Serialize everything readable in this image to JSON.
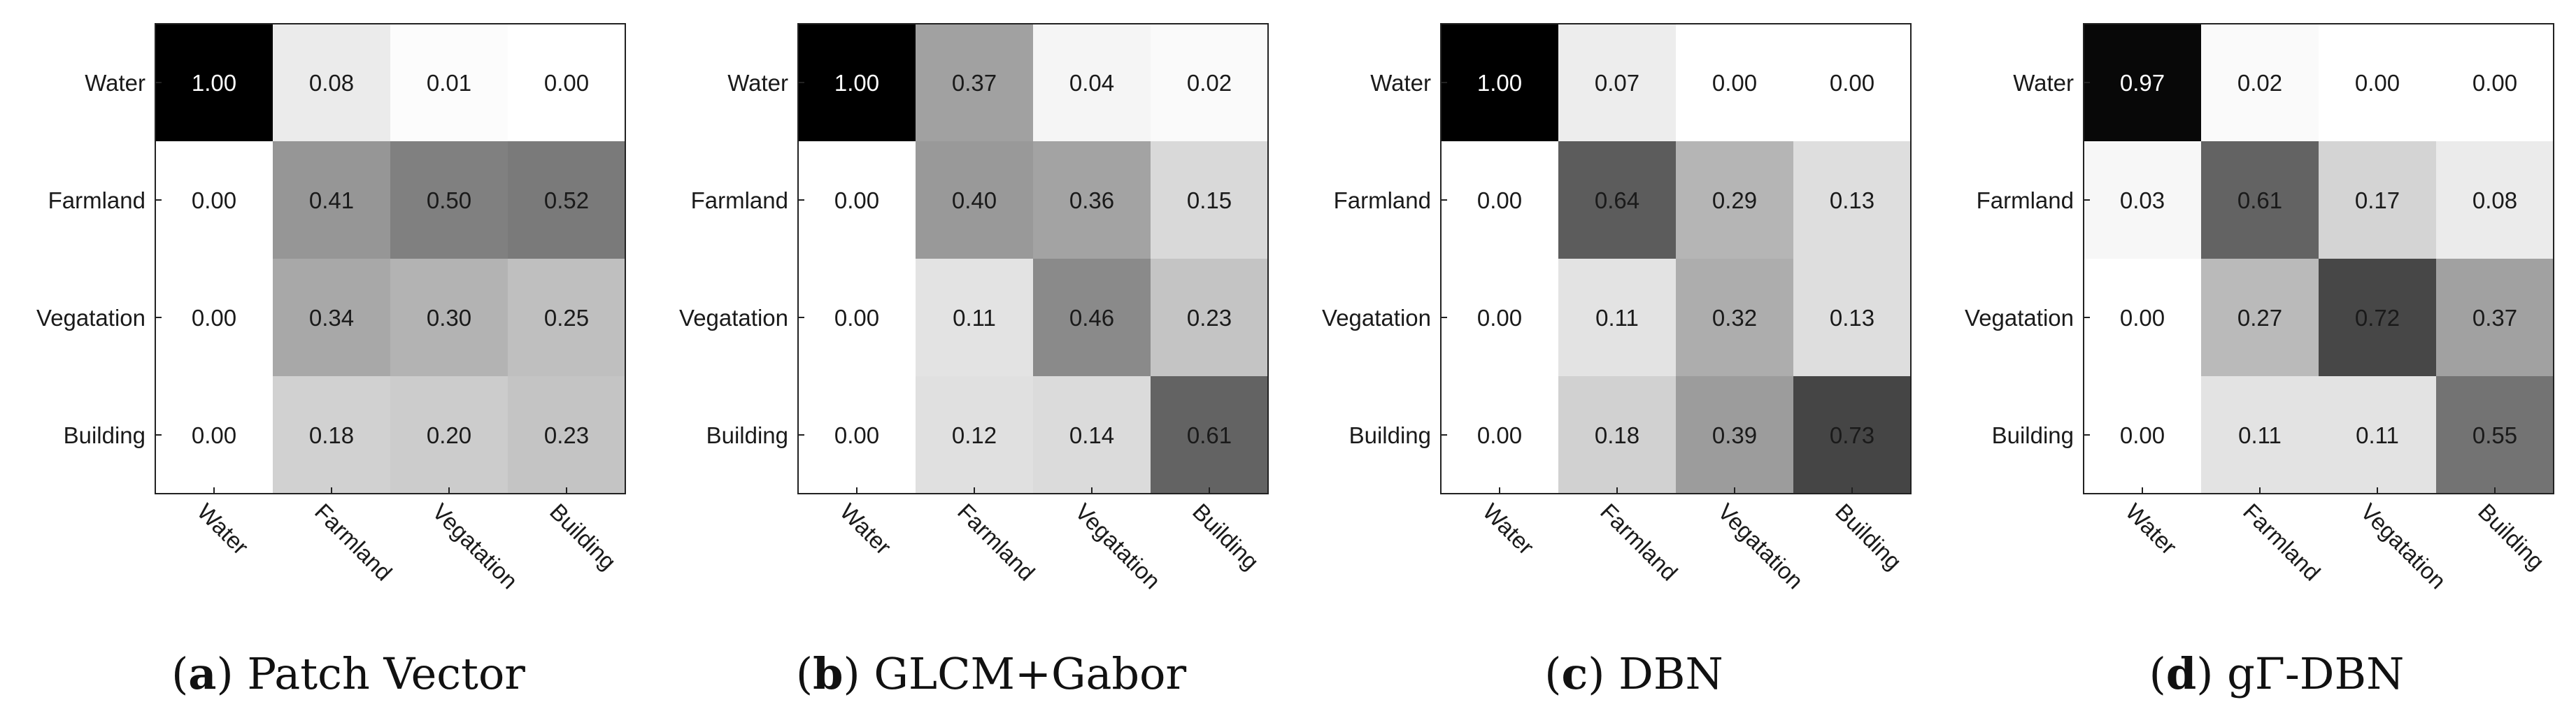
{
  "chart_data": [
    {
      "type": "heatmap",
      "caption_letter": "a",
      "caption_text": "Patch Vector",
      "row_labels": [
        "Water",
        "Farmland",
        "Vegatation",
        "Building"
      ],
      "col_labels": [
        "Water",
        "Farmland",
        "Vegatation",
        "Building"
      ],
      "values": [
        [
          1.0,
          0.08,
          0.01,
          0.0
        ],
        [
          0.0,
          0.41,
          0.5,
          0.52
        ],
        [
          0.0,
          0.34,
          0.3,
          0.25
        ],
        [
          0.0,
          0.18,
          0.2,
          0.23
        ]
      ],
      "cell_labels": [
        [
          "1.00",
          "0.08",
          "0.01",
          "0.00"
        ],
        [
          "0.00",
          "0.41",
          "0.50",
          "0.52"
        ],
        [
          "0.00",
          "0.34",
          "0.30",
          "0.25"
        ],
        [
          "0.00",
          "0.18",
          "0.20",
          "0.23"
        ]
      ],
      "vrange": [
        0,
        1
      ]
    },
    {
      "type": "heatmap",
      "caption_letter": "b",
      "caption_text": "GLCM+Gabor",
      "row_labels": [
        "Water",
        "Farmland",
        "Vegatation",
        "Building"
      ],
      "col_labels": [
        "Water",
        "Farmland",
        "Vegatation",
        "Building"
      ],
      "values": [
        [
          1.0,
          0.37,
          0.04,
          0.02
        ],
        [
          0.0,
          0.4,
          0.36,
          0.15
        ],
        [
          0.0,
          0.11,
          0.46,
          0.23
        ],
        [
          0.0,
          0.12,
          0.14,
          0.61
        ]
      ],
      "cell_labels": [
        [
          "1.00",
          "0.37",
          "0.04",
          "0.02"
        ],
        [
          "0.00",
          "0.40",
          "0.36",
          "0.15"
        ],
        [
          "0.00",
          "0.11",
          "0.46",
          "0.23"
        ],
        [
          "0.00",
          "0.12",
          "0.14",
          "0.61"
        ]
      ],
      "vrange": [
        0,
        1
      ]
    },
    {
      "type": "heatmap",
      "caption_letter": "c",
      "caption_text": "DBN",
      "row_labels": [
        "Water",
        "Farmland",
        "Vegatation",
        "Building"
      ],
      "col_labels": [
        "Water",
        "Farmland",
        "Vegatation",
        "Building"
      ],
      "values": [
        [
          1.0,
          0.07,
          0.0,
          0.0
        ],
        [
          0.0,
          0.64,
          0.29,
          0.13
        ],
        [
          0.0,
          0.11,
          0.32,
          0.13
        ],
        [
          0.0,
          0.18,
          0.39,
          0.73
        ]
      ],
      "cell_labels": [
        [
          "1.00",
          "0.07",
          "0.00",
          "0.00"
        ],
        [
          "0.00",
          "0.64",
          "0.29",
          "0.13"
        ],
        [
          "0.00",
          "0.11",
          "0.32",
          "0.13"
        ],
        [
          "0.00",
          "0.18",
          "0.39",
          "0.73"
        ]
      ],
      "vrange": [
        0,
        1
      ]
    },
    {
      "type": "heatmap",
      "caption_letter": "d",
      "caption_text": "gΓ-DBN",
      "row_labels": [
        "Water",
        "Farmland",
        "Vegatation",
        "Building"
      ],
      "col_labels": [
        "Water",
        "Farmland",
        "Vegatation",
        "Building"
      ],
      "values": [
        [
          0.97,
          0.02,
          0.0,
          0.0
        ],
        [
          0.03,
          0.61,
          0.17,
          0.08
        ],
        [
          0.0,
          0.27,
          0.72,
          0.37
        ],
        [
          0.0,
          0.11,
          0.11,
          0.55
        ]
      ],
      "cell_labels": [
        [
          "0.97",
          "0.02",
          "0.00",
          "0.00"
        ],
        [
          "0.03",
          "0.61",
          "0.17",
          "0.08"
        ],
        [
          "0.00",
          "0.27",
          "0.72",
          "0.37"
        ],
        [
          "0.00",
          "0.11",
          "0.11",
          "0.55"
        ]
      ],
      "vrange": [
        0,
        1
      ]
    }
  ]
}
